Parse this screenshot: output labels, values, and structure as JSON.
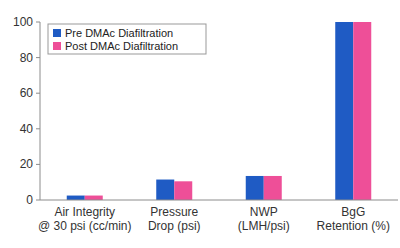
{
  "chart_data": {
    "type": "bar",
    "categories": [
      "Air Integrity\n@ 30 psi (cc/min)",
      "Pressure\nDrop (psi)",
      "NWP\n(LMH/psi)",
      "BgG\nRetention (%)"
    ],
    "series": [
      {
        "name": "Pre DMAc Diafiltration",
        "color": "#1f5bc4",
        "values": [
          2.5,
          11.5,
          13.5,
          100
        ]
      },
      {
        "name": "Post DMAc Diafiltration",
        "color": "#ee4f98",
        "values": [
          2.5,
          10.5,
          13.5,
          100
        ]
      }
    ],
    "ylim": [
      0,
      100
    ],
    "yticks": [
      0,
      20,
      40,
      60,
      80,
      100
    ],
    "grid": false,
    "legend": "upper left"
  }
}
